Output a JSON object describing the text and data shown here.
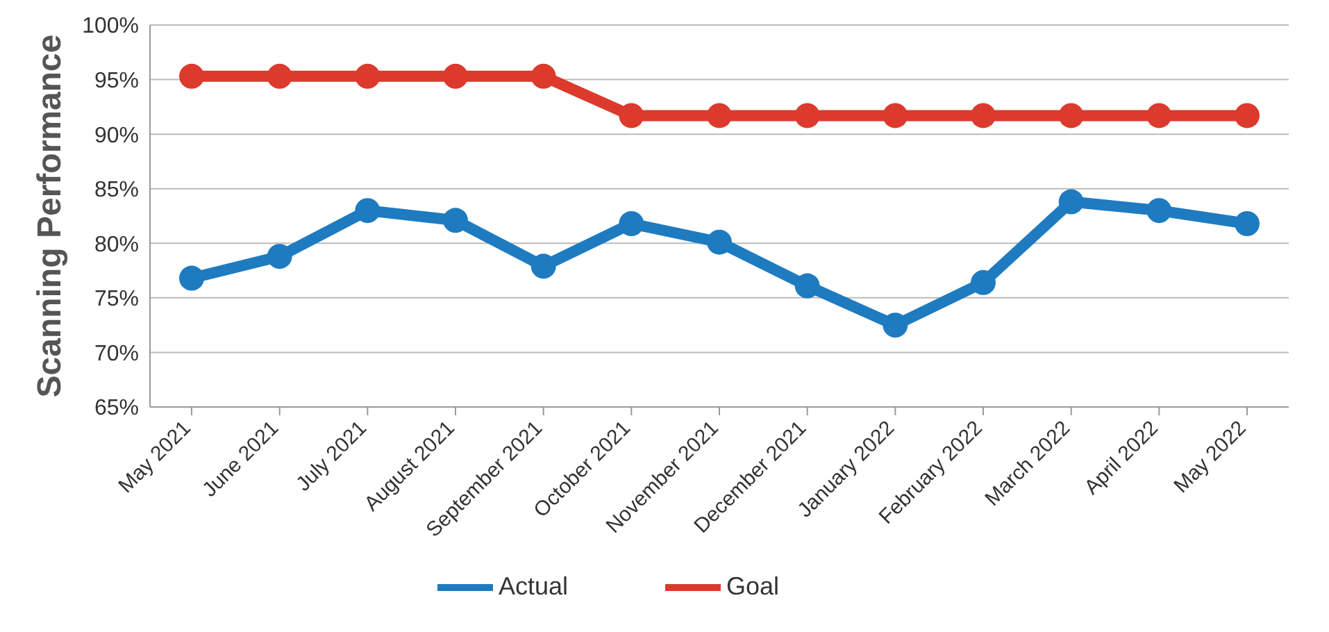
{
  "chart_data": {
    "type": "line",
    "ylabel": "Scanning Performance",
    "categories": [
      "May 2021",
      "June 2021",
      "July 2021",
      "August 2021",
      "September 2021",
      "October 2021",
      "November 2021",
      "December 2021",
      "January 2022",
      "February 2022",
      "March 2022",
      "April 2022",
      "May 2022"
    ],
    "series": [
      {
        "name": "Actual",
        "color": "#1f7bc0",
        "values": [
          76.8,
          78.8,
          83,
          82.1,
          77.9,
          81.8,
          80.1,
          76.1,
          72.5,
          76.4,
          83.8,
          83,
          81.8
        ]
      },
      {
        "name": "Goal",
        "color": "#dc3a2c",
        "values": [
          95.3,
          95.3,
          95.3,
          95.3,
          95.3,
          91.7,
          91.7,
          91.7,
          91.7,
          91.7,
          91.7,
          91.7,
          91.7
        ]
      }
    ],
    "ylim": [
      65,
      100
    ],
    "yticks": [
      {
        "value": 65,
        "label": "65%"
      },
      {
        "value": 70,
        "label": "70%"
      },
      {
        "value": 75,
        "label": "75%"
      },
      {
        "value": 80,
        "label": "80%"
      },
      {
        "value": 85,
        "label": "85%"
      },
      {
        "value": 90,
        "label": "90%"
      },
      {
        "value": 95,
        "label": "95%"
      },
      {
        "value": 100,
        "label": "100%"
      }
    ],
    "grid": "y",
    "legend": "bottom",
    "marker": "circle",
    "line_style": "solid"
  }
}
